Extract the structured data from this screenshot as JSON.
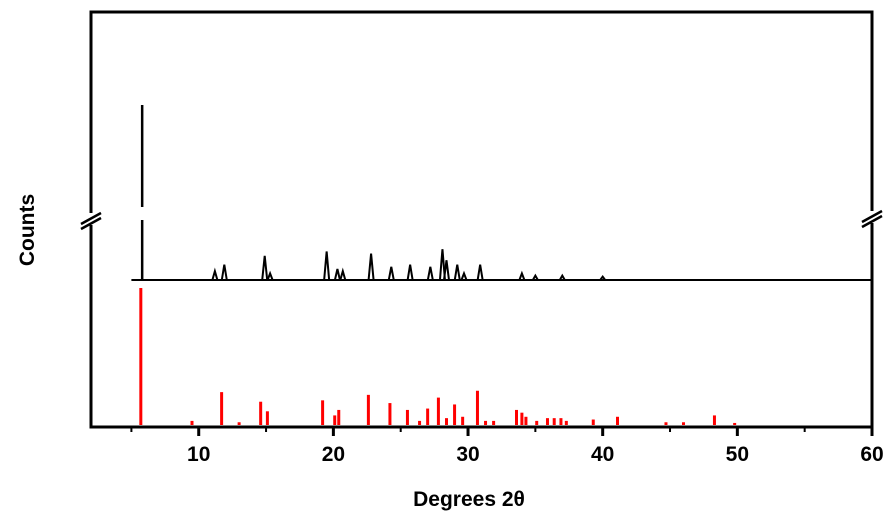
{
  "chart_data": {
    "type": "line",
    "xlabel": "Degrees 2θ",
    "ylabel": "Counts",
    "xlim": [
      2,
      60
    ],
    "xticks": [
      10,
      20,
      30,
      40,
      50,
      60
    ],
    "y_axis_break": true,
    "grid": false,
    "legend": "none",
    "series": [
      {
        "kind": "experimental pattern",
        "color": "#000000",
        "y_baseline": 0,
        "peaks": [
          {
            "x": 5.8,
            "y": 100
          },
          {
            "x": 11.2,
            "y": 4
          },
          {
            "x": 11.9,
            "y": 7
          },
          {
            "x": 14.9,
            "y": 11
          },
          {
            "x": 15.3,
            "y": 3
          },
          {
            "x": 19.5,
            "y": 13
          },
          {
            "x": 20.3,
            "y": 5
          },
          {
            "x": 20.7,
            "y": 4
          },
          {
            "x": 22.8,
            "y": 12
          },
          {
            "x": 24.3,
            "y": 6
          },
          {
            "x": 25.7,
            "y": 7
          },
          {
            "x": 27.2,
            "y": 6
          },
          {
            "x": 28.1,
            "y": 14
          },
          {
            "x": 28.4,
            "y": 9
          },
          {
            "x": 29.2,
            "y": 7
          },
          {
            "x": 29.7,
            "y": 3
          },
          {
            "x": 30.9,
            "y": 7
          },
          {
            "x": 34.0,
            "y": 3
          },
          {
            "x": 35.0,
            "y": 2
          },
          {
            "x": 37.0,
            "y": 2
          },
          {
            "x": 40.0,
            "y": 1.5
          }
        ]
      },
      {
        "kind": "reference pattern (stick)",
        "color": "#ff0000",
        "sticks": [
          {
            "x": 5.7,
            "y": 100
          },
          {
            "x": 9.5,
            "y": 3
          },
          {
            "x": 11.7,
            "y": 24
          },
          {
            "x": 13.0,
            "y": 2
          },
          {
            "x": 14.6,
            "y": 17
          },
          {
            "x": 15.1,
            "y": 10
          },
          {
            "x": 19.2,
            "y": 18
          },
          {
            "x": 20.1,
            "y": 7
          },
          {
            "x": 20.4,
            "y": 11
          },
          {
            "x": 22.6,
            "y": 22
          },
          {
            "x": 24.2,
            "y": 16
          },
          {
            "x": 25.5,
            "y": 11
          },
          {
            "x": 26.4,
            "y": 3
          },
          {
            "x": 27.0,
            "y": 12
          },
          {
            "x": 27.8,
            "y": 20
          },
          {
            "x": 28.4,
            "y": 5
          },
          {
            "x": 29.0,
            "y": 15
          },
          {
            "x": 29.6,
            "y": 6
          },
          {
            "x": 30.7,
            "y": 25
          },
          {
            "x": 31.3,
            "y": 3
          },
          {
            "x": 31.9,
            "y": 3
          },
          {
            "x": 33.6,
            "y": 11
          },
          {
            "x": 34.0,
            "y": 9
          },
          {
            "x": 34.3,
            "y": 6
          },
          {
            "x": 35.1,
            "y": 3
          },
          {
            "x": 35.9,
            "y": 5
          },
          {
            "x": 36.4,
            "y": 5
          },
          {
            "x": 36.9,
            "y": 5
          },
          {
            "x": 37.3,
            "y": 3
          },
          {
            "x": 39.3,
            "y": 4
          },
          {
            "x": 41.1,
            "y": 6
          },
          {
            "x": 44.7,
            "y": 2
          },
          {
            "x": 46.0,
            "y": 2
          },
          {
            "x": 48.3,
            "y": 7
          },
          {
            "x": 49.8,
            "y": 1.5
          }
        ]
      }
    ]
  }
}
